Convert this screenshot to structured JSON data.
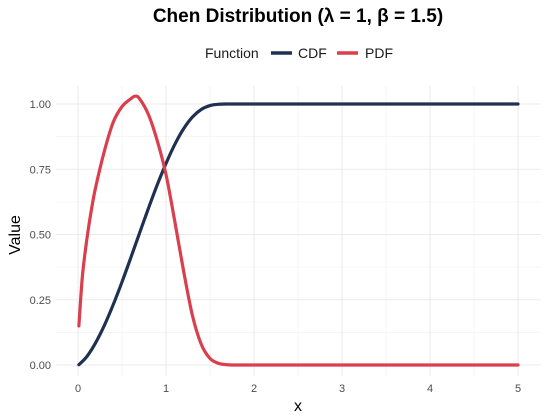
{
  "chart_data": {
    "type": "line",
    "title": "Chen Distribution (λ = 1, β = 1.5)",
    "xlabel": "x",
    "ylabel": "Value",
    "xlim": [
      0,
      5
    ],
    "ylim": [
      0,
      1.05
    ],
    "x_ticks": [
      0,
      1,
      2,
      3,
      4,
      5
    ],
    "x_tick_labels": [
      "0",
      "1",
      "2",
      "3",
      "4",
      "5"
    ],
    "y_ticks": [
      0,
      0.25,
      0.5,
      0.75,
      1.0
    ],
    "y_tick_labels": [
      "0.00",
      "0.25",
      "0.50",
      "0.75",
      "1.00"
    ],
    "grid": true,
    "legend": {
      "title": "Function",
      "position": "top"
    },
    "series": [
      {
        "name": "CDF",
        "color": "#1f3050",
        "x": [
          0.01,
          0.1,
          0.2,
          0.3,
          0.4,
          0.5,
          0.6,
          0.7,
          0.8,
          0.9,
          1.0,
          1.1,
          1.2,
          1.3,
          1.4,
          1.5,
          1.6,
          1.7,
          1.8,
          2.0,
          2.5,
          3.0,
          3.5,
          4.0,
          4.5,
          5.0
        ],
        "values": [
          0.001,
          0.032,
          0.085,
          0.152,
          0.231,
          0.318,
          0.411,
          0.506,
          0.6,
          0.69,
          0.772,
          0.845,
          0.905,
          0.95,
          0.979,
          0.994,
          0.999,
          1.0,
          1.0,
          1.0,
          1.0,
          1.0,
          1.0,
          1.0,
          1.0,
          1.0
        ]
      },
      {
        "name": "PDF",
        "color": "#d93f4c",
        "x": [
          0.01,
          0.05,
          0.1,
          0.15,
          0.2,
          0.3,
          0.4,
          0.5,
          0.6,
          0.65,
          0.7,
          0.8,
          0.9,
          1.0,
          1.1,
          1.2,
          1.3,
          1.4,
          1.5,
          1.6,
          1.7,
          1.8,
          2.0,
          2.5,
          3.0,
          4.0,
          5.0
        ],
        "values": [
          0.15,
          0.34,
          0.48,
          0.59,
          0.68,
          0.82,
          0.93,
          0.99,
          1.02,
          1.03,
          1.02,
          0.96,
          0.86,
          0.73,
          0.55,
          0.36,
          0.19,
          0.08,
          0.025,
          0.006,
          0.001,
          0.0,
          0.0,
          0.0,
          0.0,
          0.0,
          0.0
        ]
      }
    ]
  }
}
